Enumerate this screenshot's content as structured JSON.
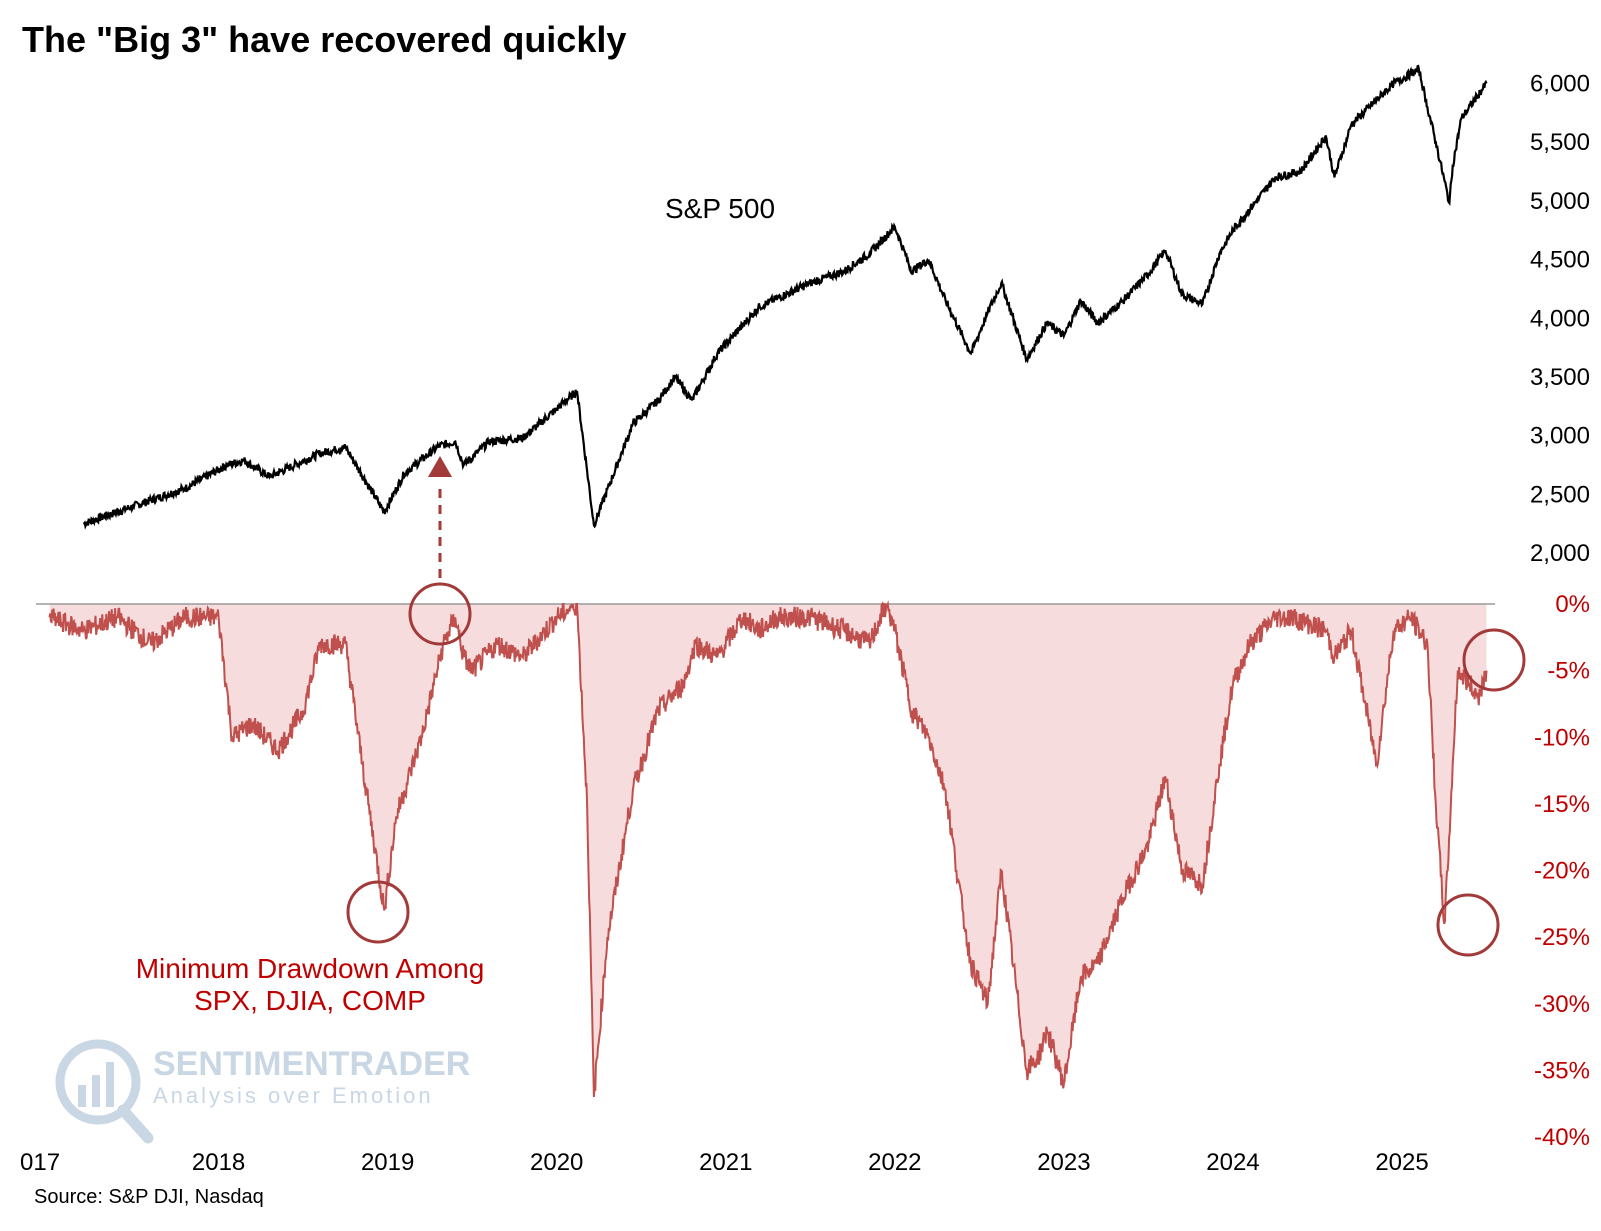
{
  "colors": {
    "spx_line": "#000000",
    "drawdown_line": "#c0504d",
    "drawdown_fill": "#f6dcdc",
    "drawdown_text": "#c00000",
    "circle": "#a33a3a",
    "arrow": "#a33a3a",
    "zero_line": "#9a9a9a",
    "watermark": "#c9d6e4"
  },
  "watermark": {
    "icon": "magnifier-chart-icon",
    "line1": "SENTIMENTRADER",
    "line2": "Analysis over Emotion"
  },
  "source": "Source: S&P DJI, Nasdaq",
  "chart_data": [
    {
      "type": "line",
      "title": "The \"Big 3\" have recovered quickly",
      "series": [
        {
          "name": "S&P 500",
          "x": [
            2017.2,
            2017.5,
            2017.8,
            2018.05,
            2018.15,
            2018.3,
            2018.6,
            2018.75,
            2018.98,
            2019.1,
            2019.3,
            2019.4,
            2019.45,
            2019.6,
            2019.8,
            2020.0,
            2020.12,
            2020.18,
            2020.22,
            2020.45,
            2020.6,
            2020.7,
            2020.8,
            2020.95,
            2021.2,
            2021.5,
            2021.7,
            2021.85,
            2022.0,
            2022.1,
            2022.2,
            2022.3,
            2022.45,
            2022.55,
            2022.63,
            2022.78,
            2022.9,
            2023.0,
            2023.1,
            2023.2,
            2023.35,
            2023.5,
            2023.6,
            2023.7,
            2023.82,
            2023.92,
            2024.0,
            2024.25,
            2024.4,
            2024.55,
            2024.6,
            2024.7,
            2024.95,
            2025.1,
            2025.15,
            2025.2,
            2025.28,
            2025.3,
            2025.35,
            2025.45,
            2025.5
          ],
          "values": [
            2250,
            2400,
            2550,
            2750,
            2790,
            2650,
            2850,
            2900,
            2350,
            2680,
            2910,
            2950,
            2750,
            2950,
            2980,
            3230,
            3380,
            2700,
            2237,
            3100,
            3300,
            3500,
            3300,
            3700,
            4100,
            4300,
            4400,
            4550,
            4780,
            4400,
            4500,
            4150,
            3700,
            4050,
            4300,
            3650,
            3960,
            3850,
            4150,
            3960,
            4150,
            4380,
            4580,
            4200,
            4120,
            4550,
            4750,
            5200,
            5250,
            5550,
            5200,
            5650,
            6000,
            6120,
            5800,
            5500,
            4982,
            5300,
            5700,
            5900,
            6000
          ],
          "color": "#000000"
        }
      ],
      "xlim": [
        2016.92,
        2025.55
      ],
      "ylim": [
        1600,
        6200
      ],
      "xticks": [
        "017",
        "2018",
        "2019",
        "2020",
        "2021",
        "2022",
        "2023",
        "2024",
        "2025"
      ],
      "yticks": [
        "2,000",
        "2,500",
        "3,000",
        "3,500",
        "4,000",
        "4,500",
        "5,000",
        "5,500",
        "6,000"
      ],
      "label": "S&P 500"
    },
    {
      "type": "area",
      "series": [
        {
          "name": "Minimum Drawdown Among SPX, DJIA, COMP",
          "x": [
            2017.0,
            2017.2,
            2017.4,
            2017.6,
            2017.8,
            2018.0,
            2018.08,
            2018.2,
            2018.35,
            2018.5,
            2018.6,
            2018.75,
            2018.85,
            2018.98,
            2019.05,
            2019.2,
            2019.33,
            2019.4,
            2019.45,
            2019.5,
            2019.65,
            2019.8,
            2020.0,
            2020.12,
            2020.18,
            2020.22,
            2020.3,
            2020.45,
            2020.6,
            2020.75,
            2020.82,
            2020.95,
            2021.1,
            2021.2,
            2021.3,
            2021.5,
            2021.7,
            2021.85,
            2021.95,
            2022.0,
            2022.1,
            2022.2,
            2022.3,
            2022.4,
            2022.45,
            2022.55,
            2022.63,
            2022.78,
            2022.85,
            2022.9,
            2023.0,
            2023.1,
            2023.2,
            2023.35,
            2023.5,
            2023.6,
            2023.7,
            2023.82,
            2023.92,
            2024.0,
            2024.1,
            2024.25,
            2024.35,
            2024.55,
            2024.6,
            2024.7,
            2024.85,
            2024.95,
            2025.05,
            2025.15,
            2025.2,
            2025.25,
            2025.27,
            2025.3,
            2025.33,
            2025.4,
            2025.45,
            2025.5
          ],
          "values": [
            -1,
            -2,
            -1,
            -3,
            -1,
            -1,
            -10,
            -9,
            -11,
            -8,
            -3,
            -3,
            -12,
            -23,
            -16,
            -10,
            -3,
            -1,
            -4,
            -5,
            -3,
            -4,
            -1,
            0,
            -15,
            -37,
            -25,
            -14,
            -8,
            -6,
            -3,
            -4,
            -1,
            -2,
            -1,
            -1,
            -2,
            -3,
            0,
            -2,
            -8,
            -10,
            -14,
            -23,
            -27,
            -30,
            -20,
            -35,
            -34,
            -32,
            -36,
            -28,
            -27,
            -22,
            -18,
            -13,
            -20,
            -21,
            -12,
            -6,
            -3,
            -1,
            -1,
            -2,
            -4,
            -2,
            -12,
            -2,
            -1,
            -3,
            -15,
            -24,
            -20,
            -12,
            -5,
            -6,
            -7,
            -5
          ],
          "color": "#c0504d"
        }
      ],
      "xlim": [
        2016.92,
        2025.55
      ],
      "ylim": [
        -40,
        0
      ],
      "xticks": [
        "017",
        "2018",
        "2019",
        "2020",
        "2021",
        "2022",
        "2023",
        "2024",
        "2025"
      ],
      "yticks": [
        "0%",
        "-5%",
        "-10%",
        "-15%",
        "-20%",
        "-25%",
        "-30%",
        "-35%",
        "-40%"
      ],
      "label_line1": "Minimum Drawdown Among",
      "label_line2": "SPX, DJIA, COMP"
    }
  ]
}
